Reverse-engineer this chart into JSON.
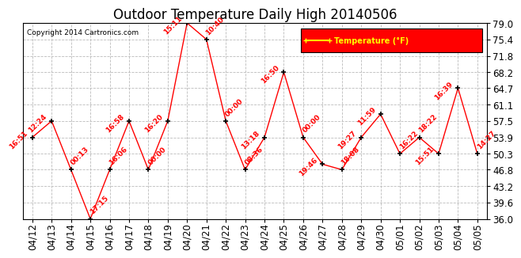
{
  "title": "Outdoor Temperature Daily High 20140506",
  "copyright": "Copyright 2014 Cartronics.com",
  "legend_label": "Temperature (°F)",
  "x_labels": [
    "04/12",
    "04/13",
    "04/14",
    "04/15",
    "04/16",
    "04/17",
    "04/18",
    "04/19",
    "04/20",
    "04/21",
    "04/22",
    "04/23",
    "04/24",
    "04/25",
    "04/26",
    "04/27",
    "04/28",
    "04/29",
    "04/30",
    "05/01",
    "05/02",
    "05/03",
    "05/04",
    "05/05"
  ],
  "y_values": [
    53.9,
    57.5,
    46.8,
    36.0,
    46.8,
    57.5,
    46.8,
    57.5,
    79.0,
    75.4,
    57.5,
    46.8,
    53.9,
    68.2,
    53.9,
    48.0,
    46.8,
    53.9,
    59.0,
    50.3,
    53.9,
    50.3,
    64.7,
    50.3
  ],
  "ann_labels": [
    "16:51",
    "12:24",
    "00:13",
    "17:15",
    "16:06",
    "16:58",
    "00:00",
    "16:20",
    "15:11",
    "10:40",
    "00:00",
    "08:36",
    "13:18",
    "16:50",
    "00:00",
    "19:46",
    "18:08",
    "19:27",
    "11:59",
    "16:22",
    "18:22",
    "15:51",
    "16:39",
    "14:27"
  ],
  "ann_side": [
    "left",
    "left",
    "right",
    "right",
    "right",
    "left",
    "right",
    "left",
    "left",
    "right",
    "right",
    "right",
    "left",
    "left",
    "right",
    "left",
    "right",
    "left",
    "left",
    "right",
    "right",
    "left",
    "left",
    "right"
  ],
  "line_color": "#ff0000",
  "marker_color": "#000000",
  "annotation_color": "#ff0000",
  "background_color": "#ffffff",
  "grid_color": "#bbbbbb",
  "ylim": [
    36.0,
    79.0
  ],
  "yticks": [
    36.0,
    39.6,
    43.2,
    46.8,
    50.3,
    53.9,
    57.5,
    61.1,
    64.7,
    68.2,
    71.8,
    75.4,
    79.0
  ],
  "legend_bg": "#ff0000",
  "legend_text_color": "#ffff00",
  "title_fontsize": 12,
  "axis_fontsize": 8.5,
  "ann_fontsize": 6.5
}
